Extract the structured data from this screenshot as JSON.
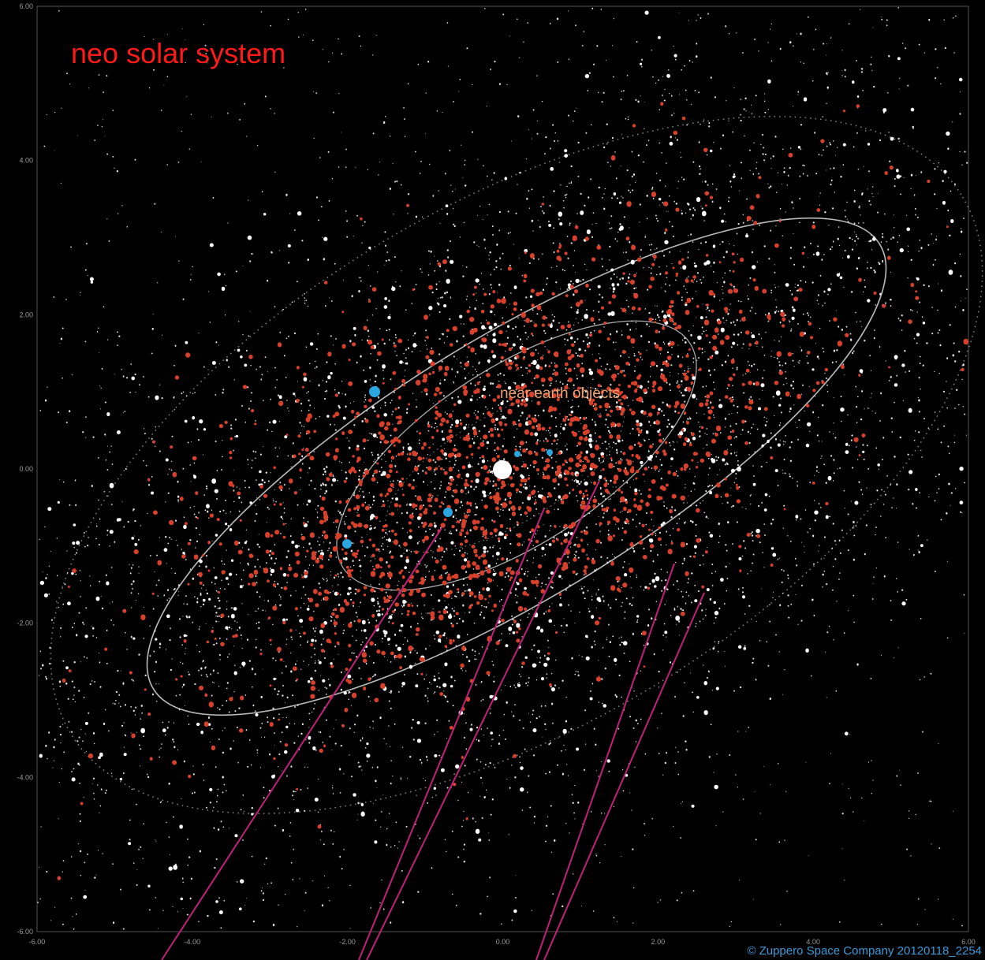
{
  "title": "neo solar  system",
  "annotation": "near earth objects",
  "credit": "© Zuppero Space Company 20120118_2254",
  "y_axis": {
    "ticks": [
      "6.00",
      "4.00",
      "2.00",
      "0.00",
      "-2.00",
      "-4.00",
      "-6.00"
    ]
  },
  "x_axis": {
    "ticks": [
      "-6.00",
      "-4.00",
      "-2.00",
      "0.00",
      "2.00",
      "4.00",
      "6.00"
    ]
  }
}
